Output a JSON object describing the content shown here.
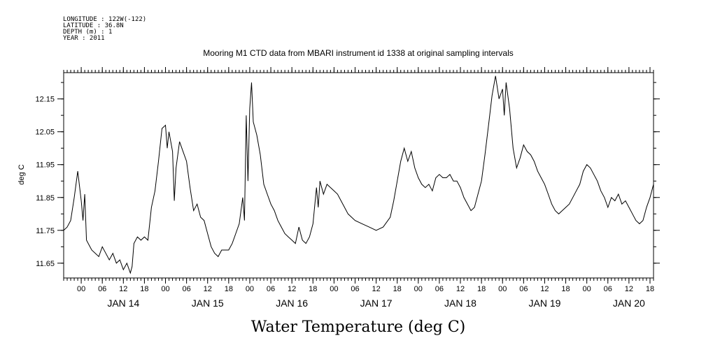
{
  "header": {
    "meta_lines": [
      "LONGITUDE : 122W(-122)",
      "LATITUDE : 36.8N",
      "DEPTH (m) : 1",
      "YEAR : 2011"
    ],
    "title": "Mooring M1 CTD data from MBARI instrument id 1338 at original sampling intervals"
  },
  "chart_data": {
    "type": "line",
    "title": "Mooring M1 CTD data from MBARI instrument id 1338 at original sampling intervals",
    "xlabel": "Water Temperature (deg C)",
    "ylabel": "deg C",
    "xlim": [
      "2011-01-13T19:00",
      "2011-01-20T19:00"
    ],
    "ylim": [
      11.605,
      12.23
    ],
    "yticks": [
      11.65,
      11.75,
      11.85,
      11.95,
      12.05,
      12.15
    ],
    "ytick_labels": [
      "11.65",
      "11.75",
      "11.85",
      "11.95",
      "12.05",
      "12.15"
    ],
    "hour_ticks": [
      {
        "t": "2011-01-14T00:00",
        "label": "00"
      },
      {
        "t": "2011-01-14T06:00",
        "label": "06"
      },
      {
        "t": "2011-01-14T12:00",
        "label": "12"
      },
      {
        "t": "2011-01-14T18:00",
        "label": "18"
      },
      {
        "t": "2011-01-15T00:00",
        "label": "00"
      },
      {
        "t": "2011-01-15T06:00",
        "label": "06"
      },
      {
        "t": "2011-01-15T12:00",
        "label": "12"
      },
      {
        "t": "2011-01-15T18:00",
        "label": "18"
      },
      {
        "t": "2011-01-16T00:00",
        "label": "00"
      },
      {
        "t": "2011-01-16T06:00",
        "label": "06"
      },
      {
        "t": "2011-01-16T12:00",
        "label": "12"
      },
      {
        "t": "2011-01-16T18:00",
        "label": "18"
      },
      {
        "t": "2011-01-17T00:00",
        "label": "00"
      },
      {
        "t": "2011-01-17T06:00",
        "label": "06"
      },
      {
        "t": "2011-01-17T12:00",
        "label": "12"
      },
      {
        "t": "2011-01-17T18:00",
        "label": "18"
      },
      {
        "t": "2011-01-18T00:00",
        "label": "00"
      },
      {
        "t": "2011-01-18T06:00",
        "label": "06"
      },
      {
        "t": "2011-01-18T12:00",
        "label": "12"
      },
      {
        "t": "2011-01-18T18:00",
        "label": "18"
      },
      {
        "t": "2011-01-19T00:00",
        "label": "00"
      },
      {
        "t": "2011-01-19T06:00",
        "label": "06"
      },
      {
        "t": "2011-01-19T12:00",
        "label": "12"
      },
      {
        "t": "2011-01-19T18:00",
        "label": "18"
      },
      {
        "t": "2011-01-20T00:00",
        "label": "00"
      },
      {
        "t": "2011-01-20T06:00",
        "label": "06"
      },
      {
        "t": "2011-01-20T12:00",
        "label": "12"
      },
      {
        "t": "2011-01-20T18:00",
        "label": "18"
      }
    ],
    "day_labels": [
      {
        "t": "2011-01-14T12:00",
        "label": "JAN 14"
      },
      {
        "t": "2011-01-15T12:00",
        "label": "JAN 15"
      },
      {
        "t": "2011-01-16T12:00",
        "label": "JAN 16"
      },
      {
        "t": "2011-01-17T12:00",
        "label": "JAN 17"
      },
      {
        "t": "2011-01-18T12:00",
        "label": "JAN 18"
      },
      {
        "t": "2011-01-19T12:00",
        "label": "JAN 19"
      },
      {
        "t": "2011-01-20T12:00",
        "label": "JAN 20"
      }
    ],
    "grid": false,
    "series": [
      {
        "color": "#000000",
        "points": [
          [
            "2011-01-13T19:00",
            11.75
          ],
          [
            "2011-01-13T20:00",
            11.76
          ],
          [
            "2011-01-13T21:00",
            11.78
          ],
          [
            "2011-01-13T22:00",
            11.85
          ],
          [
            "2011-01-13T23:00",
            11.93
          ],
          [
            "2011-01-14T00:00",
            11.84
          ],
          [
            "2011-01-14T00:30",
            11.78
          ],
          [
            "2011-01-14T01:00",
            11.86
          ],
          [
            "2011-01-14T01:30",
            11.72
          ],
          [
            "2011-01-14T03:00",
            11.69
          ],
          [
            "2011-01-14T05:00",
            11.67
          ],
          [
            "2011-01-14T06:00",
            11.7
          ],
          [
            "2011-01-14T07:00",
            11.68
          ],
          [
            "2011-01-14T08:00",
            11.66
          ],
          [
            "2011-01-14T09:00",
            11.68
          ],
          [
            "2011-01-14T10:00",
            11.65
          ],
          [
            "2011-01-14T11:00",
            11.66
          ],
          [
            "2011-01-14T12:00",
            11.63
          ],
          [
            "2011-01-14T13:00",
            11.65
          ],
          [
            "2011-01-14T14:00",
            11.62
          ],
          [
            "2011-01-14T14:30",
            11.64
          ],
          [
            "2011-01-14T15:00",
            11.71
          ],
          [
            "2011-01-14T16:00",
            11.73
          ],
          [
            "2011-01-14T17:00",
            11.72
          ],
          [
            "2011-01-14T18:00",
            11.73
          ],
          [
            "2011-01-14T19:00",
            11.72
          ],
          [
            "2011-01-14T20:00",
            11.82
          ],
          [
            "2011-01-14T21:00",
            11.87
          ],
          [
            "2011-01-14T22:00",
            11.96
          ],
          [
            "2011-01-14T23:00",
            12.06
          ],
          [
            "2011-01-15T00:00",
            12.07
          ],
          [
            "2011-01-15T00:30",
            12.0
          ],
          [
            "2011-01-15T01:00",
            12.05
          ],
          [
            "2011-01-15T02:00",
            11.99
          ],
          [
            "2011-01-15T02:30",
            11.84
          ],
          [
            "2011-01-15T03:00",
            11.94
          ],
          [
            "2011-01-15T04:00",
            12.02
          ],
          [
            "2011-01-15T05:00",
            11.99
          ],
          [
            "2011-01-15T06:00",
            11.96
          ],
          [
            "2011-01-15T07:00",
            11.88
          ],
          [
            "2011-01-15T08:00",
            11.81
          ],
          [
            "2011-01-15T09:00",
            11.83
          ],
          [
            "2011-01-15T10:00",
            11.79
          ],
          [
            "2011-01-15T11:00",
            11.78
          ],
          [
            "2011-01-15T12:00",
            11.74
          ],
          [
            "2011-01-15T13:00",
            11.7
          ],
          [
            "2011-01-15T14:00",
            11.68
          ],
          [
            "2011-01-15T15:00",
            11.67
          ],
          [
            "2011-01-15T16:00",
            11.69
          ],
          [
            "2011-01-15T17:00",
            11.69
          ],
          [
            "2011-01-15T18:00",
            11.69
          ],
          [
            "2011-01-15T19:00",
            11.71
          ],
          [
            "2011-01-15T20:00",
            11.74
          ],
          [
            "2011-01-15T21:00",
            11.77
          ],
          [
            "2011-01-15T22:00",
            11.85
          ],
          [
            "2011-01-15T22:30",
            11.78
          ],
          [
            "2011-01-15T23:00",
            12.1
          ],
          [
            "2011-01-15T23:30",
            11.9
          ],
          [
            "2011-01-16T00:00",
            12.12
          ],
          [
            "2011-01-16T00:30",
            12.2
          ],
          [
            "2011-01-16T01:00",
            12.08
          ],
          [
            "2011-01-16T02:00",
            12.04
          ],
          [
            "2011-01-16T03:00",
            11.98
          ],
          [
            "2011-01-16T04:00",
            11.89
          ],
          [
            "2011-01-16T05:00",
            11.86
          ],
          [
            "2011-01-16T06:00",
            11.83
          ],
          [
            "2011-01-16T07:00",
            11.81
          ],
          [
            "2011-01-16T08:00",
            11.78
          ],
          [
            "2011-01-16T09:00",
            11.76
          ],
          [
            "2011-01-16T10:00",
            11.74
          ],
          [
            "2011-01-16T11:00",
            11.73
          ],
          [
            "2011-01-16T12:00",
            11.72
          ],
          [
            "2011-01-16T13:00",
            11.71
          ],
          [
            "2011-01-16T14:00",
            11.76
          ],
          [
            "2011-01-16T15:00",
            11.72
          ],
          [
            "2011-01-16T16:00",
            11.71
          ],
          [
            "2011-01-16T17:00",
            11.73
          ],
          [
            "2011-01-16T18:00",
            11.77
          ],
          [
            "2011-01-16T19:00",
            11.88
          ],
          [
            "2011-01-16T19:30",
            11.82
          ],
          [
            "2011-01-16T20:00",
            11.9
          ],
          [
            "2011-01-16T21:00",
            11.86
          ],
          [
            "2011-01-16T22:00",
            11.89
          ],
          [
            "2011-01-16T23:00",
            11.88
          ],
          [
            "2011-01-17T00:00",
            11.87
          ],
          [
            "2011-01-17T01:00",
            11.86
          ],
          [
            "2011-01-17T02:00",
            11.84
          ],
          [
            "2011-01-17T03:00",
            11.82
          ],
          [
            "2011-01-17T04:00",
            11.8
          ],
          [
            "2011-01-17T06:00",
            11.78
          ],
          [
            "2011-01-17T08:00",
            11.77
          ],
          [
            "2011-01-17T10:00",
            11.76
          ],
          [
            "2011-01-17T12:00",
            11.75
          ],
          [
            "2011-01-17T14:00",
            11.76
          ],
          [
            "2011-01-17T16:00",
            11.79
          ],
          [
            "2011-01-17T17:00",
            11.84
          ],
          [
            "2011-01-17T18:00",
            11.9
          ],
          [
            "2011-01-17T19:00",
            11.96
          ],
          [
            "2011-01-17T20:00",
            12.0
          ],
          [
            "2011-01-17T21:00",
            11.96
          ],
          [
            "2011-01-17T22:00",
            11.99
          ],
          [
            "2011-01-17T23:00",
            11.94
          ],
          [
            "2011-01-18T00:00",
            11.91
          ],
          [
            "2011-01-18T01:00",
            11.89
          ],
          [
            "2011-01-18T02:00",
            11.88
          ],
          [
            "2011-01-18T03:00",
            11.89
          ],
          [
            "2011-01-18T04:00",
            11.87
          ],
          [
            "2011-01-18T05:00",
            11.91
          ],
          [
            "2011-01-18T06:00",
            11.92
          ],
          [
            "2011-01-18T07:00",
            11.91
          ],
          [
            "2011-01-18T08:00",
            11.91
          ],
          [
            "2011-01-18T09:00",
            11.92
          ],
          [
            "2011-01-18T10:00",
            11.9
          ],
          [
            "2011-01-18T11:00",
            11.9
          ],
          [
            "2011-01-18T12:00",
            11.88
          ],
          [
            "2011-01-18T13:00",
            11.85
          ],
          [
            "2011-01-18T14:00",
            11.83
          ],
          [
            "2011-01-18T15:00",
            11.81
          ],
          [
            "2011-01-18T16:00",
            11.82
          ],
          [
            "2011-01-18T17:00",
            11.86
          ],
          [
            "2011-01-18T18:00",
            11.9
          ],
          [
            "2011-01-18T19:00",
            11.98
          ],
          [
            "2011-01-18T20:00",
            12.07
          ],
          [
            "2011-01-18T21:00",
            12.16
          ],
          [
            "2011-01-18T22:00",
            12.22
          ],
          [
            "2011-01-18T23:00",
            12.15
          ],
          [
            "2011-01-19T00:00",
            12.18
          ],
          [
            "2011-01-19T00:30",
            12.1
          ],
          [
            "2011-01-19T01:00",
            12.2
          ],
          [
            "2011-01-19T02:00",
            12.12
          ],
          [
            "2011-01-19T03:00",
            12.0
          ],
          [
            "2011-01-19T04:00",
            11.94
          ],
          [
            "2011-01-19T05:00",
            11.97
          ],
          [
            "2011-01-19T06:00",
            12.01
          ],
          [
            "2011-01-19T07:00",
            11.99
          ],
          [
            "2011-01-19T08:00",
            11.98
          ],
          [
            "2011-01-19T09:00",
            11.96
          ],
          [
            "2011-01-19T10:00",
            11.93
          ],
          [
            "2011-01-19T11:00",
            11.91
          ],
          [
            "2011-01-19T12:00",
            11.89
          ],
          [
            "2011-01-19T13:00",
            11.86
          ],
          [
            "2011-01-19T14:00",
            11.83
          ],
          [
            "2011-01-19T15:00",
            11.81
          ],
          [
            "2011-01-19T16:00",
            11.8
          ],
          [
            "2011-01-19T17:00",
            11.81
          ],
          [
            "2011-01-19T18:00",
            11.82
          ],
          [
            "2011-01-19T19:00",
            11.83
          ],
          [
            "2011-01-19T20:00",
            11.85
          ],
          [
            "2011-01-19T21:00",
            11.87
          ],
          [
            "2011-01-19T22:00",
            11.89
          ],
          [
            "2011-01-19T23:00",
            11.93
          ],
          [
            "2011-01-20T00:00",
            11.95
          ],
          [
            "2011-01-20T01:00",
            11.94
          ],
          [
            "2011-01-20T02:00",
            11.92
          ],
          [
            "2011-01-20T03:00",
            11.9
          ],
          [
            "2011-01-20T04:00",
            11.87
          ],
          [
            "2011-01-20T05:00",
            11.85
          ],
          [
            "2011-01-20T06:00",
            11.82
          ],
          [
            "2011-01-20T07:00",
            11.85
          ],
          [
            "2011-01-20T08:00",
            11.84
          ],
          [
            "2011-01-20T09:00",
            11.86
          ],
          [
            "2011-01-20T10:00",
            11.83
          ],
          [
            "2011-01-20T11:00",
            11.84
          ],
          [
            "2011-01-20T12:00",
            11.82
          ],
          [
            "2011-01-20T13:00",
            11.8
          ],
          [
            "2011-01-20T14:00",
            11.78
          ],
          [
            "2011-01-20T15:00",
            11.77
          ],
          [
            "2011-01-20T16:00",
            11.78
          ],
          [
            "2011-01-20T17:00",
            11.82
          ],
          [
            "2011-01-20T18:00",
            11.85
          ],
          [
            "2011-01-20T19:00",
            11.89
          ]
        ]
      }
    ]
  }
}
